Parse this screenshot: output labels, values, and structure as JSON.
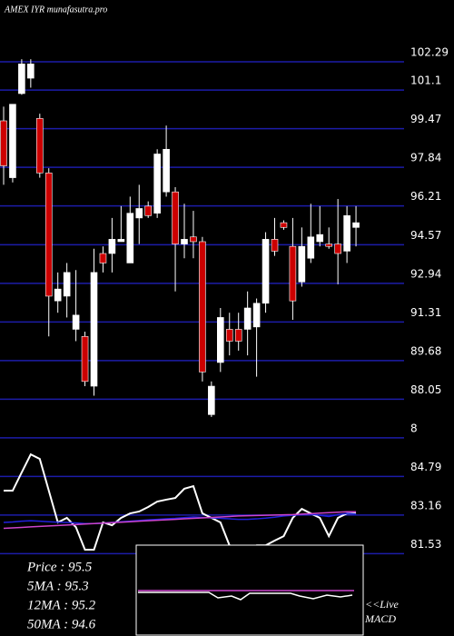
{
  "chart_data": {
    "type": "candlestick",
    "title": "AMEX  IYR munafasutra.pro",
    "ylim": [
      81.43,
      104.9
    ],
    "yticks": [
      102.29,
      101.1,
      99.47,
      97.84,
      96.21,
      94.57,
      92.94,
      91.31,
      89.68,
      88.05,
      {
        "value": 86.42,
        "label": "8"
      },
      84.79,
      83.16,
      81.53
    ],
    "grid": true,
    "grid_color": "#1c1ca8",
    "up_color": "#ffffff",
    "down_color": "#cc0000",
    "open": [
      99.8,
      97.4,
      100.95,
      101.6,
      99.9,
      97.6,
      92.2,
      92.4,
      91.0,
      90.7,
      88.6,
      94.2,
      94.2,
      94.7,
      93.8,
      95.7,
      96.2,
      95.9,
      96.8,
      96.8,
      94.6,
      94.9,
      94.7,
      87.4,
      89.6,
      91.0,
      91.0,
      91.0,
      91.1,
      92.1,
      94.8,
      95.5,
      94.5,
      93.0,
      94.0,
      94.7,
      94.6,
      94.6,
      94.3,
      95.3
    ],
    "high": [
      100.4,
      100.5,
      102.4,
      102.4,
      100.1,
      97.8,
      93.4,
      93.8,
      93.5,
      90.9,
      94.4,
      94.5,
      95.7,
      96.2,
      96.6,
      97.1,
      96.4,
      98.6,
      99.6,
      97.0,
      96.3,
      96.0,
      94.9,
      88.8,
      91.9,
      91.7,
      91.7,
      92.6,
      92.3,
      95.1,
      95.7,
      95.6,
      95.7,
      95.3,
      96.3,
      96.2,
      95.3,
      96.5,
      96.2,
      96.2
    ],
    "low": [
      97.1,
      97.2,
      100.9,
      101.2,
      97.4,
      90.7,
      91.7,
      91.5,
      90.5,
      88.6,
      88.2,
      93.4,
      93.4,
      94.7,
      93.8,
      94.6,
      95.7,
      95.7,
      96.6,
      92.6,
      94.0,
      94.0,
      88.8,
      87.3,
      89.2,
      89.9,
      90.1,
      89.9,
      89.0,
      91.7,
      94.1,
      95.2,
      91.4,
      92.8,
      93.8,
      94.5,
      94.4,
      92.9,
      93.8,
      94.5
    ],
    "close": [
      97.9,
      100.5,
      102.2,
      102.2,
      97.6,
      92.4,
      92.7,
      93.4,
      91.6,
      88.8,
      93.4,
      93.8,
      94.8,
      94.8,
      95.9,
      96.1,
      95.8,
      98.4,
      98.6,
      94.6,
      94.8,
      94.7,
      89.2,
      88.6,
      91.5,
      90.5,
      90.5,
      91.9,
      92.1,
      94.8,
      94.3,
      95.3,
      92.2,
      94.5,
      94.9,
      95.0,
      94.5,
      94.2,
      95.8,
      95.5
    ],
    "series": [
      {
        "color": "#ffffff",
        "values": [
          84.19,
          84.19,
          84.96,
          85.72,
          85.53,
          84.19,
          82.85,
          83.04,
          82.65,
          81.7,
          81.7,
          82.85,
          82.73,
          83.04,
          83.23,
          83.31,
          83.5,
          83.73,
          83.81,
          83.88,
          84.27,
          84.38,
          83.23,
          83.04,
          82.85,
          81.88,
          81.5,
          81.7,
          81.88,
          81.88,
          82.08,
          82.27,
          83.04,
          83.42,
          83.23,
          83.04,
          82.27,
          83.04,
          83.23,
          83.23
        ]
      },
      {
        "color": "#2020dd",
        "values": [
          82.85,
          82.87,
          82.9,
          82.92,
          82.9,
          82.88,
          82.86,
          82.85,
          82.83,
          82.8,
          82.8,
          82.82,
          82.85,
          82.88,
          82.9,
          82.93,
          82.96,
          82.98,
          83.0,
          83.02,
          83.05,
          83.08,
          83.06,
          83.04,
          83.02,
          83.0,
          82.98,
          82.98,
          83.0,
          83.03,
          83.07,
          83.12,
          83.15,
          83.18,
          83.2,
          83.15,
          83.1,
          83.18,
          83.23,
          83.2
        ]
      },
      {
        "color": "#cc44cc",
        "values": [
          82.6,
          82.62,
          82.64,
          82.66,
          82.68,
          82.7,
          82.72,
          82.74,
          82.76,
          82.78,
          82.8,
          82.82,
          82.84,
          82.86,
          82.88,
          82.9,
          82.92,
          82.94,
          82.96,
          82.98,
          83.0,
          83.02,
          83.04,
          83.06,
          83.08,
          83.1,
          83.12,
          83.13,
          83.14,
          83.15,
          83.16,
          83.17,
          83.18,
          83.2,
          83.22,
          83.24,
          83.26,
          83.28,
          83.3,
          83.3
        ]
      }
    ],
    "stats": [
      "Price  : 95.5",
      "5MA : 95.3",
      "12MA : 95.2",
      "50MA : 94.6"
    ],
    "macd_label": [
      "<<Live",
      "MACD"
    ]
  }
}
